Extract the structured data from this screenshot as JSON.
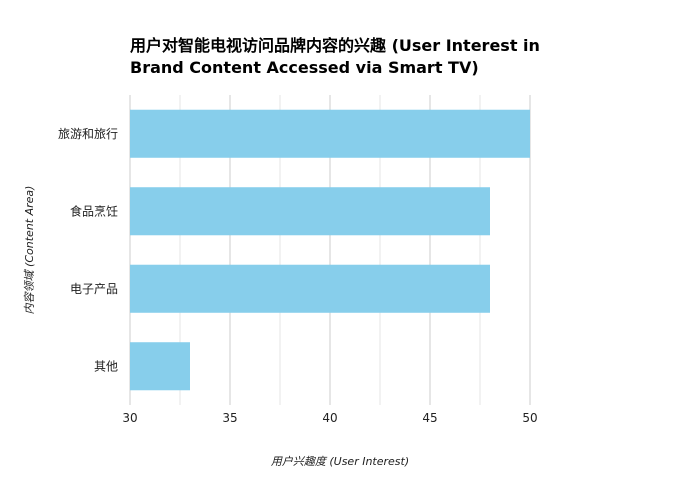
{
  "chart_data": {
    "type": "bar",
    "orientation": "horizontal",
    "title_lines": [
      "用户对智能电视访问品牌内容的兴趣 (User Interest in",
      "Brand Content Accessed via Smart TV)"
    ],
    "xlabel": "用户兴趣度 (User Interest)",
    "ylabel": "内容领域 (Content Area)",
    "categories": [
      "旅游和旅行",
      "食品烹饪",
      "电子产品",
      "其他"
    ],
    "values": [
      50,
      48,
      48,
      33
    ],
    "xlim": [
      30,
      51
    ],
    "xticks": [
      30,
      35,
      40,
      45,
      50
    ],
    "grid": true,
    "bar_color": "#87ceeb",
    "grid_color": "#cccccc",
    "minor_grid_color": "#e6e6e6"
  }
}
